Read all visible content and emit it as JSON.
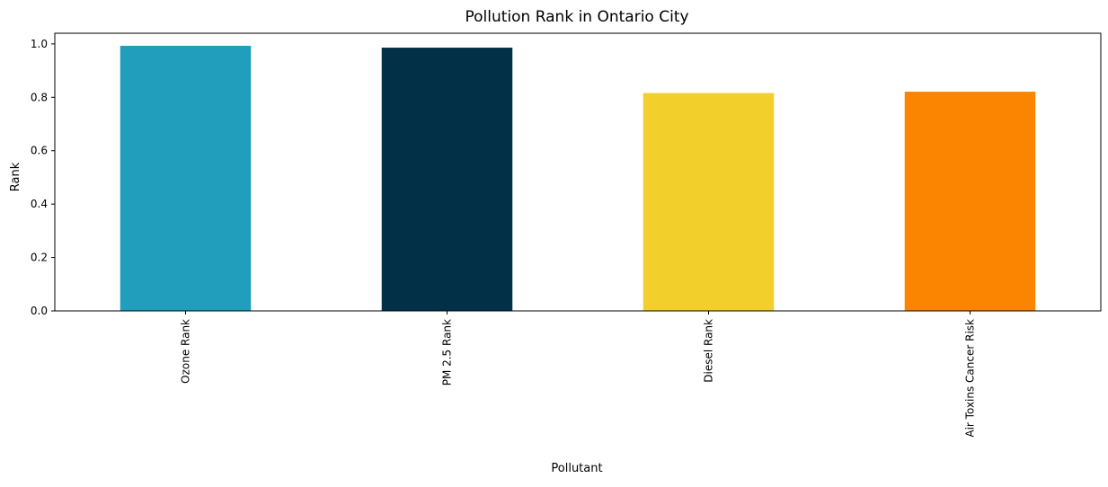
{
  "chart_data": {
    "type": "bar",
    "title": "Pollution Rank in Ontario City",
    "xlabel": "Pollutant",
    "ylabel": "Rank",
    "categories": [
      "Ozone Rank",
      "PM 2.5 Rank",
      "Diesel Rank",
      "Air Toxins Cancer Risk"
    ],
    "values": [
      0.993,
      0.986,
      0.816,
      0.821
    ],
    "colors": [
      "#219ebc",
      "#023047",
      "#f2cf2a",
      "#fb8500"
    ],
    "ylim": [
      0,
      1.04
    ],
    "yticks": [
      0.0,
      0.2,
      0.4,
      0.6,
      0.8,
      1.0
    ],
    "ytick_labels": [
      "0.0",
      "0.2",
      "0.4",
      "0.6",
      "0.8",
      "1.0"
    ],
    "grid": false,
    "legend": "none"
  }
}
